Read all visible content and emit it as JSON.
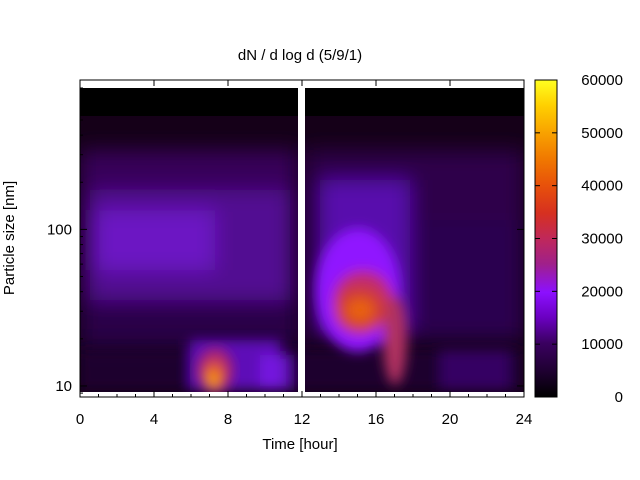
{
  "chart_data": {
    "type": "heatmap",
    "title": "dN / d log d (5/9/1)",
    "xlabel": "Time [hour]",
    "ylabel": "Particle size [nm]",
    "xlim": [
      0,
      24
    ],
    "x_ticks": [
      0,
      4,
      8,
      12,
      16,
      20,
      24
    ],
    "ylim": [
      8.5,
      900
    ],
    "y_scale": "log",
    "y_ticks": [
      10,
      100
    ],
    "colorbar": {
      "range": [
        0,
        60000
      ],
      "ticks": [
        0,
        10000,
        20000,
        30000,
        40000,
        50000,
        60000
      ],
      "colormap": [
        "#000000",
        "#3a0060",
        "#8c10ff",
        "#c0285a",
        "#e8520a",
        "#ffd000",
        "#ffff20"
      ]
    },
    "data_gaps": [
      [
        12.0,
        12.3
      ]
    ],
    "upper_size_limit_nm": 850,
    "regions": [
      {
        "description": "afternoon nucleation event",
        "time_range": [
          13.7,
          17.3
        ],
        "size_peak_nm": 22,
        "peak_value": 33000
      },
      {
        "description": "morning burst",
        "time_range": [
          6.7,
          7.9
        ],
        "size_peak_nm": 11,
        "peak_value": 45000
      },
      {
        "description": "background accumulation mode",
        "time_range": [
          0,
          24
        ],
        "size_peak_nm": 80,
        "peak_value": 9000
      }
    ]
  }
}
